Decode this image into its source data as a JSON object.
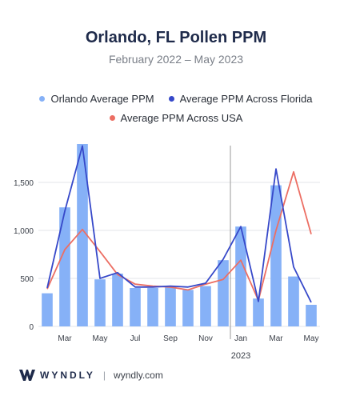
{
  "header": {
    "title": "Orlando, FL Pollen PPM",
    "subtitle": "February 2022 – May 2023"
  },
  "colors": {
    "bar": "#86b1f7",
    "florida_line": "#3648c9",
    "usa_line": "#ec6e63",
    "grid": "#e3e5e8",
    "divider": "#9a9a9a",
    "brand": "#1e2a4a"
  },
  "footer": {
    "brand": "WYNDLY",
    "site": "wyndly.com"
  },
  "chart_data": {
    "type": "bar",
    "categories": [
      "Feb",
      "Mar",
      "Apr",
      "May",
      "Jun",
      "Jul",
      "Aug",
      "Sep",
      "Oct",
      "Nov",
      "Dec",
      "Jan",
      "Feb",
      "Mar",
      "Apr",
      "May"
    ],
    "x_tick_labels": [
      "Mar",
      "May",
      "Jul",
      "Sep",
      "Nov",
      "Jan",
      "Mar",
      "May"
    ],
    "year_label": "2023",
    "year_divider_before_index": 11,
    "series": [
      {
        "name": "Orlando Average PPM",
        "type": "bar",
        "values": [
          345,
          1240,
          1900,
          490,
          550,
          400,
          400,
          420,
          380,
          420,
          690,
          1040,
          290,
          1470,
          520,
          225
        ]
      },
      {
        "name": "Average PPM Across Florida",
        "type": "line",
        "values": [
          400,
          1200,
          1880,
          500,
          560,
          410,
          410,
          420,
          410,
          450,
          700,
          1040,
          260,
          1640,
          620,
          250
        ]
      },
      {
        "name": "Average PPM Across USA",
        "type": "line",
        "values": [
          390,
          800,
          1010,
          780,
          540,
          440,
          420,
          410,
          380,
          440,
          490,
          690,
          270,
          1000,
          1610,
          960
        ]
      }
    ],
    "y_ticks": [
      0,
      500,
      1000,
      1500
    ],
    "y_tick_labels": [
      "0",
      "500",
      "1,000",
      "1,500"
    ],
    "ylim": [
      0,
      2000
    ],
    "grid": true,
    "legend_position": "top"
  }
}
